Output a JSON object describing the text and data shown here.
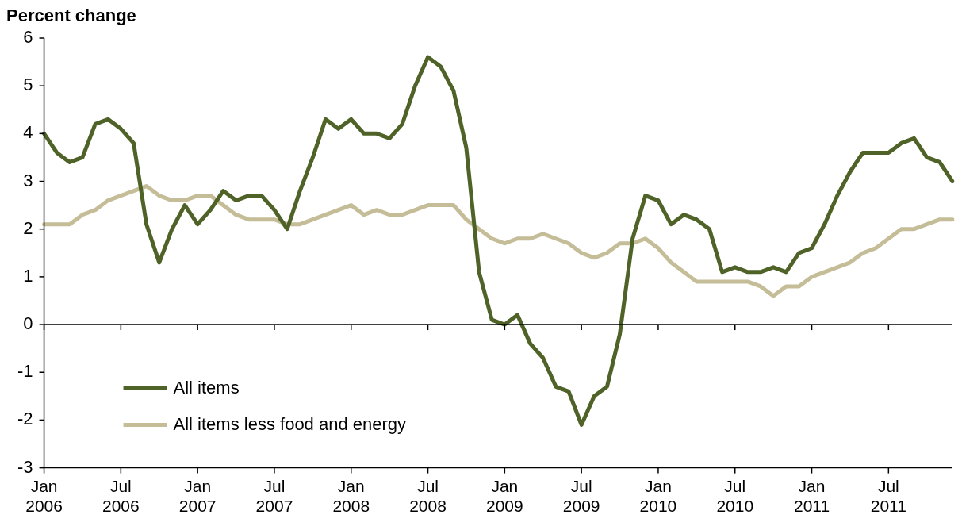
{
  "chart_data": {
    "type": "line",
    "ylabel": "Percent change",
    "categories": [
      "Jan 2006",
      null,
      null,
      null,
      null,
      null,
      "Jul 2006",
      null,
      null,
      null,
      null,
      null,
      "Jan 2007",
      null,
      null,
      null,
      null,
      null,
      "Jul 2007",
      null,
      null,
      null,
      null,
      null,
      "Jan 2008",
      null,
      null,
      null,
      null,
      null,
      "Jul 2008",
      null,
      null,
      null,
      null,
      null,
      "Jan 2009",
      null,
      null,
      null,
      null,
      null,
      "Jul 2009",
      null,
      null,
      null,
      null,
      null,
      "Jan 2010",
      null,
      null,
      null,
      null,
      null,
      "Jul 2010",
      null,
      null,
      null,
      null,
      null,
      "Jan 2011",
      null,
      null,
      null,
      null,
      null,
      "Jul 2011",
      null,
      null,
      null,
      null,
      null
    ],
    "series": [
      {
        "name": "All items",
        "color": "#4f6228",
        "values": [
          4.0,
          3.6,
          3.4,
          3.5,
          4.2,
          4.3,
          4.1,
          3.8,
          2.1,
          1.3,
          2.0,
          2.5,
          2.1,
          2.4,
          2.8,
          2.6,
          2.7,
          2.7,
          2.4,
          2.0,
          2.8,
          3.5,
          4.3,
          4.1,
          4.3,
          4.0,
          4.0,
          3.9,
          4.2,
          5.0,
          5.6,
          5.4,
          4.9,
          3.7,
          1.1,
          0.1,
          0.0,
          0.2,
          -0.4,
          -0.7,
          -1.3,
          -1.4,
          -2.1,
          -1.5,
          -1.3,
          -0.2,
          1.8,
          2.7,
          2.6,
          2.1,
          2.3,
          2.2,
          2.0,
          1.1,
          1.2,
          1.1,
          1.1,
          1.2,
          1.1,
          1.5,
          1.6,
          2.1,
          2.7,
          3.2,
          3.6,
          3.6,
          3.6,
          3.8,
          3.9,
          3.5,
          3.4,
          3.0
        ]
      },
      {
        "name": "All items less food and energy",
        "color": "#c4bd97",
        "values": [
          2.1,
          2.1,
          2.1,
          2.3,
          2.4,
          2.6,
          2.7,
          2.8,
          2.9,
          2.7,
          2.6,
          2.6,
          2.7,
          2.7,
          2.5,
          2.3,
          2.2,
          2.2,
          2.2,
          2.1,
          2.1,
          2.2,
          2.3,
          2.4,
          2.5,
          2.3,
          2.4,
          2.3,
          2.3,
          2.4,
          2.5,
          2.5,
          2.5,
          2.2,
          2.0,
          1.8,
          1.7,
          1.8,
          1.8,
          1.9,
          1.8,
          1.7,
          1.5,
          1.4,
          1.5,
          1.7,
          1.7,
          1.8,
          1.6,
          1.3,
          1.1,
          0.9,
          0.9,
          0.9,
          0.9,
          0.9,
          0.8,
          0.6,
          0.8,
          0.8,
          1.0,
          1.1,
          1.2,
          1.3,
          1.5,
          1.6,
          1.8,
          2.0,
          2.0,
          2.1,
          2.2,
          2.2
        ]
      }
    ],
    "ylim": [
      -3,
      6
    ],
    "yticks": [
      -3,
      -2,
      -1,
      0,
      1,
      2,
      3,
      4,
      5,
      6
    ],
    "ref_lines": [
      {
        "axis": "y",
        "value": 0
      }
    ],
    "grid": false,
    "legend": "bottom left",
    "marker": "none",
    "line_style": "solid"
  }
}
